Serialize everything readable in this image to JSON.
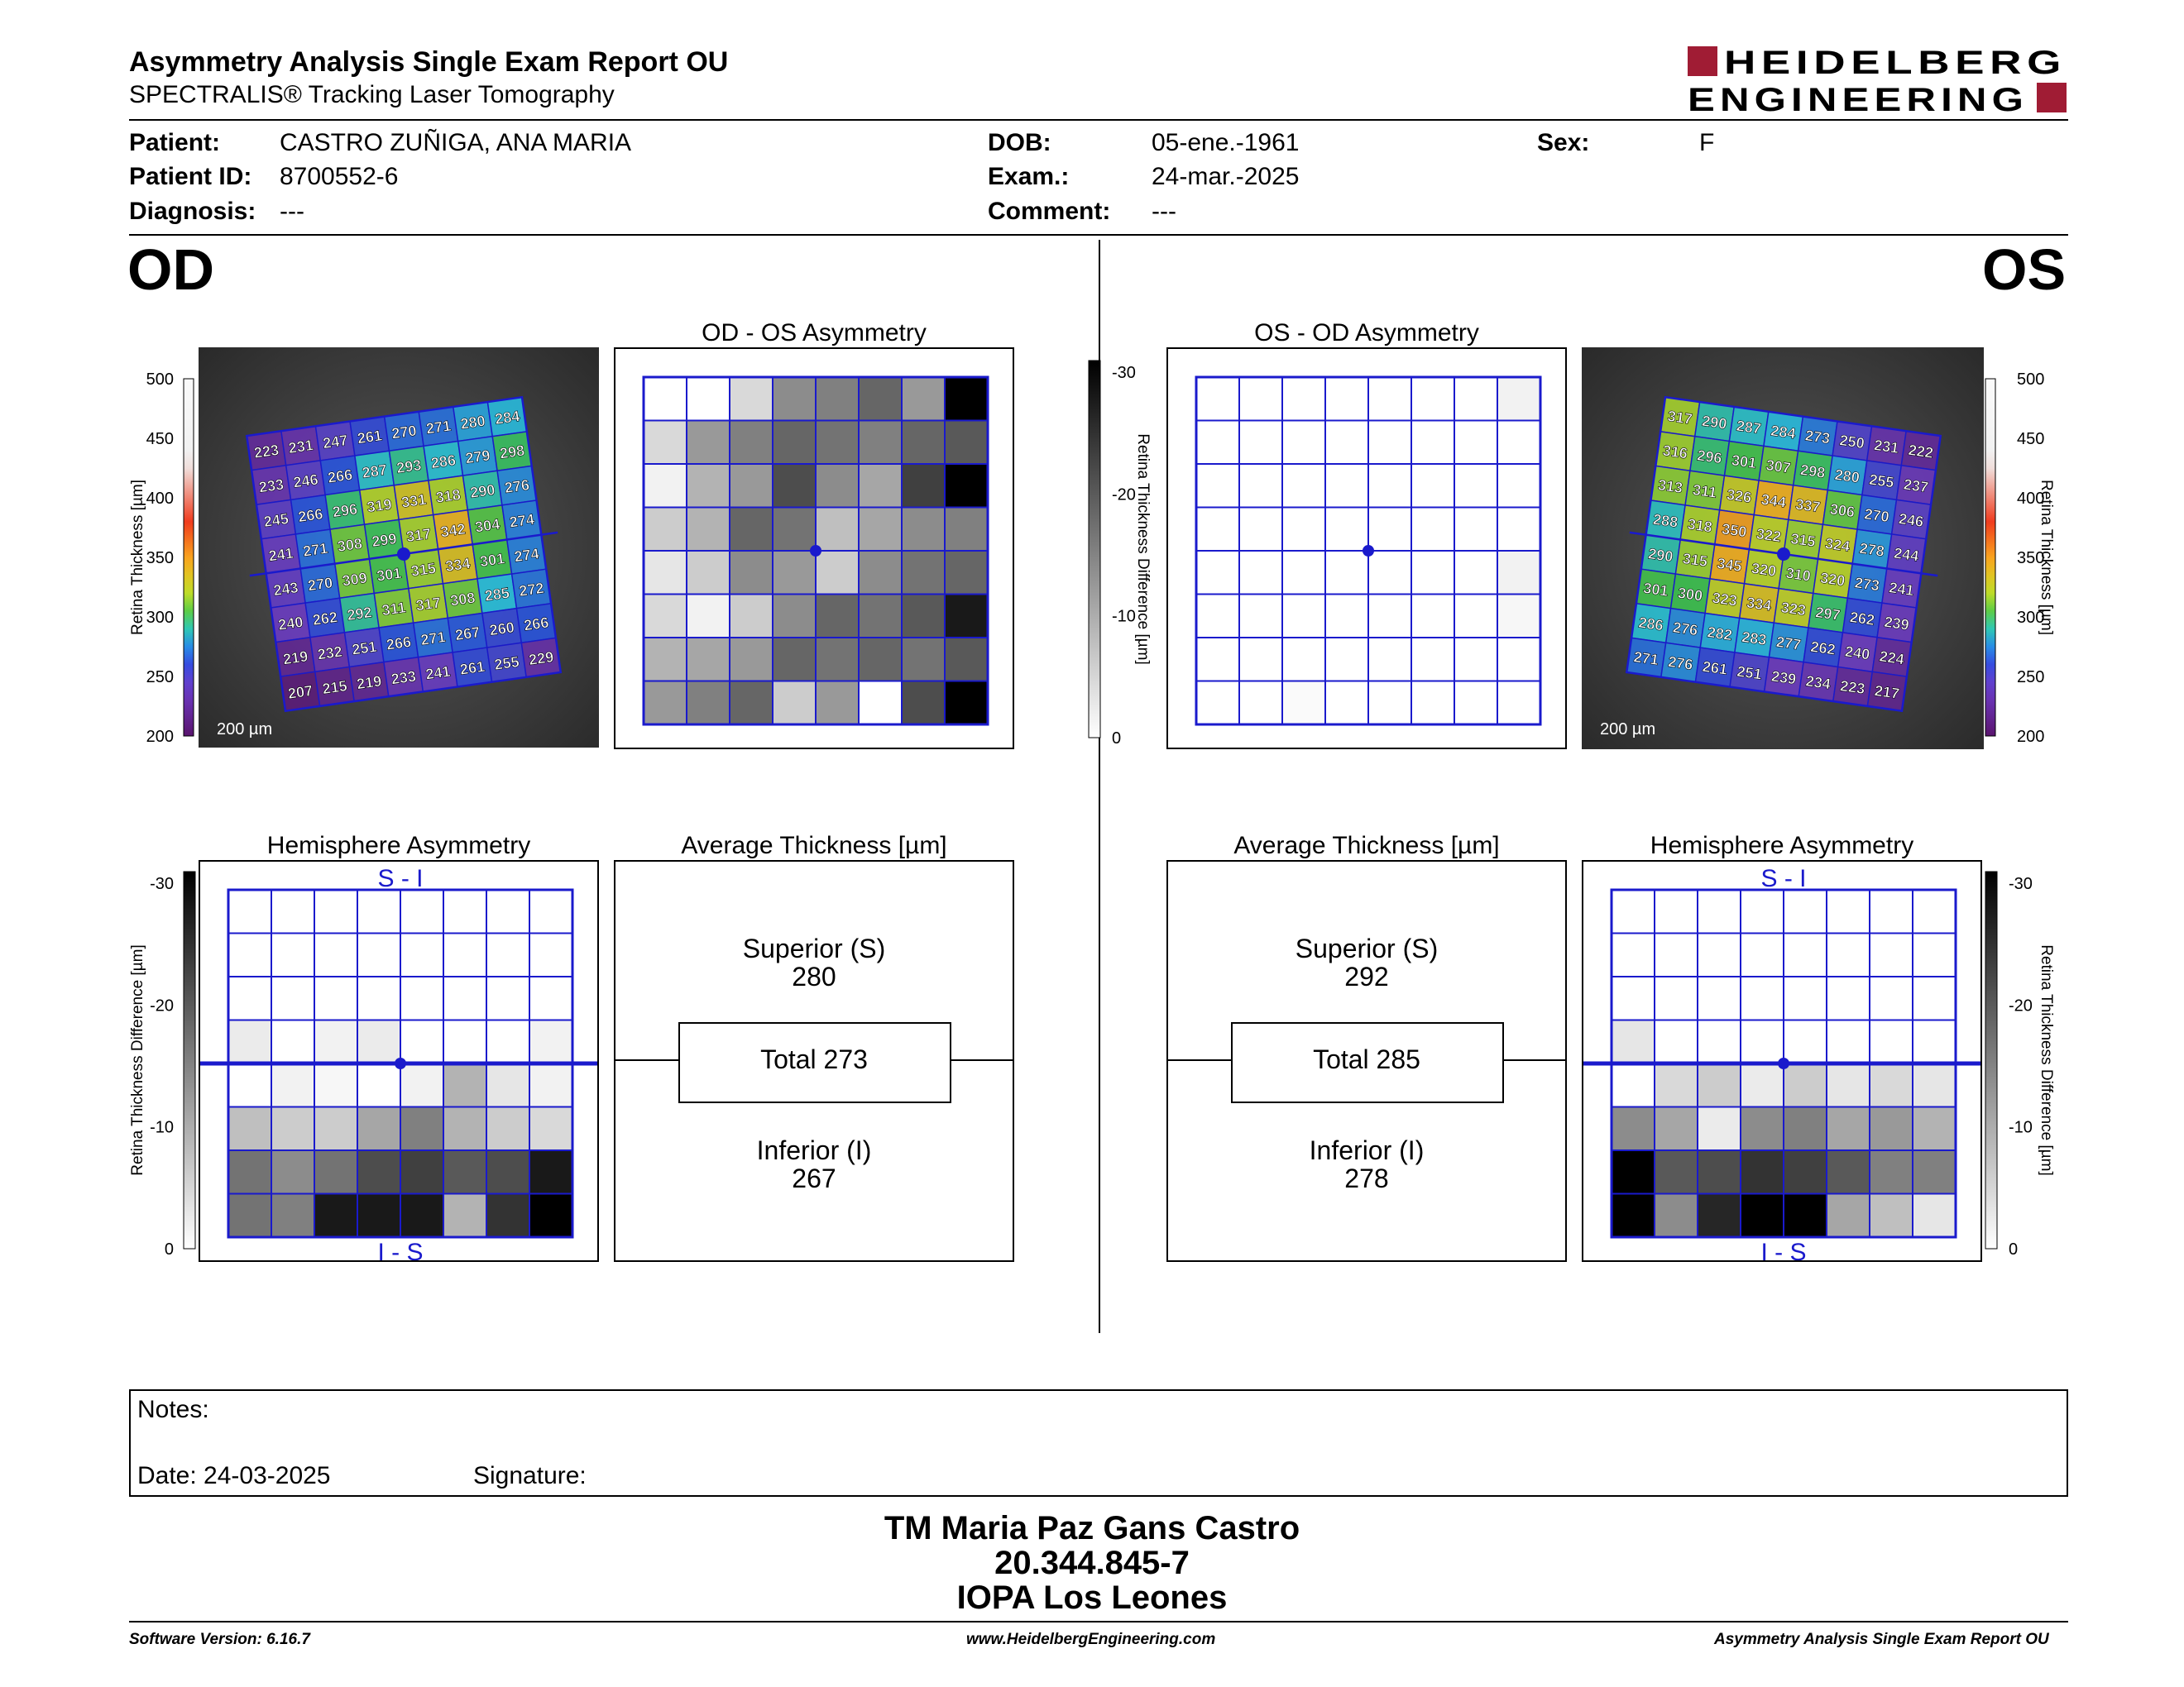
{
  "header": {
    "title": "Asymmetry Analysis Single Exam Report OU",
    "subtitle": "SPECTRALIS® Tracking Laser Tomography",
    "logo_line1": "HEIDELBERG",
    "logo_line2": "ENGINEERING",
    "brand_color": "#a01c34"
  },
  "patient": {
    "patient_label": "Patient:",
    "patient_value": "CASTRO ZUÑIGA, ANA MARIA",
    "id_label": "Patient ID:",
    "id_value": "8700552-6",
    "diagnosis_label": "Diagnosis:",
    "diagnosis_value": "---",
    "dob_label": "DOB:",
    "dob_value": "05-ene.-1961",
    "exam_label": "Exam.:",
    "exam_value": "24-mar.-2025",
    "comment_label": "Comment:",
    "comment_value": "---",
    "sex_label": "Sex:",
    "sex_value": "F"
  },
  "od": {
    "eye_label": "OD",
    "asym_title": "OD - OS Asymmetry",
    "hemi_title": "Hemisphere Asymmetry",
    "hemi_top": "S - I",
    "hemi_bottom": "I - S",
    "avg_title": "Average Thickness [µm]",
    "superior_label": "Superior (S)",
    "superior_value": "280",
    "total_text": "Total 273",
    "inferior_label": "Inferior (I)",
    "inferior_value": "267",
    "scale_bar": "200 µm",
    "thickness_grid": [
      [
        223,
        231,
        247,
        261,
        270,
        271,
        280,
        284
      ],
      [
        233,
        246,
        266,
        287,
        293,
        286,
        279,
        298
      ],
      [
        245,
        266,
        296,
        319,
        331,
        318,
        290,
        276
      ],
      [
        241,
        271,
        308,
        299,
        317,
        342,
        304,
        274
      ],
      [
        243,
        270,
        309,
        301,
        315,
        334,
        301,
        274
      ],
      [
        240,
        262,
        292,
        311,
        317,
        308,
        285,
        272
      ],
      [
        219,
        232,
        251,
        266,
        271,
        267,
        260,
        266
      ],
      [
        207,
        215,
        219,
        233,
        241,
        261,
        255,
        229
      ]
    ],
    "asym_gray": [
      [
        0,
        0,
        0.15,
        0.45,
        0.5,
        0.6,
        0.4,
        1.0
      ],
      [
        0.15,
        0.4,
        0.5,
        0.6,
        0.55,
        0.5,
        0.6,
        0.65
      ],
      [
        0.05,
        0.3,
        0.4,
        0.7,
        0.45,
        0.35,
        0.75,
        1.0
      ],
      [
        0.2,
        0.3,
        0.6,
        0.55,
        0.25,
        0.35,
        0.45,
        0.5
      ],
      [
        0.1,
        0.2,
        0.45,
        0.4,
        0.2,
        0.45,
        0.55,
        0.6
      ],
      [
        0.15,
        0.05,
        0.2,
        0.45,
        0.6,
        0.55,
        0.65,
        0.9
      ],
      [
        0.3,
        0.35,
        0.4,
        0.6,
        0.55,
        0.6,
        0.55,
        0.65
      ],
      [
        0.4,
        0.5,
        0.6,
        0.2,
        0.4,
        0.0,
        0.7,
        1.0
      ]
    ],
    "hemi_gray": [
      [
        0,
        0,
        0,
        0,
        0,
        0,
        0,
        0
      ],
      [
        0,
        0,
        0,
        0,
        0,
        0,
        0,
        0
      ],
      [
        0,
        0,
        0,
        0,
        0,
        0,
        0,
        0
      ],
      [
        0.08,
        0,
        0.05,
        0.08,
        0,
        0,
        0,
        0.05
      ],
      [
        0,
        0.05,
        0.03,
        0,
        0.05,
        0.3,
        0.1,
        0.05
      ],
      [
        0.25,
        0.2,
        0.2,
        0.35,
        0.5,
        0.3,
        0.2,
        0.15
      ],
      [
        0.55,
        0.45,
        0.55,
        0.7,
        0.75,
        0.65,
        0.7,
        0.9
      ],
      [
        0.55,
        0.5,
        0.9,
        0.9,
        0.9,
        0.3,
        0.8,
        1.0
      ]
    ]
  },
  "os": {
    "eye_label": "OS",
    "asym_title": "OS - OD Asymmetry",
    "hemi_title": "Hemisphere Asymmetry",
    "hemi_top": "S - I",
    "hemi_bottom": "I - S",
    "avg_title": "Average Thickness [µm]",
    "superior_label": "Superior (S)",
    "superior_value": "292",
    "total_text": "Total 285",
    "inferior_label": "Inferior (I)",
    "inferior_value": "278",
    "scale_bar": "200 µm",
    "thickness_grid": [
      [
        317,
        290,
        287,
        284,
        273,
        250,
        231,
        222
      ],
      [
        316,
        296,
        301,
        307,
        298,
        280,
        255,
        237
      ],
      [
        313,
        311,
        326,
        344,
        337,
        306,
        270,
        246
      ],
      [
        288,
        318,
        350,
        322,
        315,
        324,
        278,
        244
      ],
      [
        290,
        315,
        345,
        320,
        310,
        320,
        273,
        241
      ],
      [
        301,
        300,
        323,
        334,
        323,
        297,
        262,
        239
      ],
      [
        286,
        276,
        282,
        283,
        277,
        262,
        240,
        224
      ],
      [
        271,
        276,
        261,
        251,
        239,
        234,
        223,
        217
      ]
    ],
    "asym_gray": [
      [
        0,
        0,
        0,
        0,
        0,
        0,
        0,
        0.05
      ],
      [
        0,
        0,
        0,
        0,
        0,
        0,
        0,
        0
      ],
      [
        0,
        0,
        0,
        0,
        0,
        0,
        0,
        0
      ],
      [
        0,
        0,
        0,
        0,
        0,
        0,
        0,
        0
      ],
      [
        0,
        0,
        0,
        0,
        0,
        0,
        0,
        0.05
      ],
      [
        0,
        0,
        0,
        0,
        0,
        0,
        0,
        0.03
      ],
      [
        0,
        0,
        0,
        0,
        0,
        0,
        0,
        0
      ],
      [
        0,
        0,
        0.02,
        0,
        0,
        0,
        0,
        0
      ]
    ],
    "hemi_gray": [
      [
        0,
        0,
        0,
        0,
        0,
        0,
        0,
        0
      ],
      [
        0,
        0,
        0,
        0,
        0,
        0,
        0,
        0
      ],
      [
        0,
        0,
        0,
        0,
        0,
        0,
        0,
        0
      ],
      [
        0.1,
        0,
        0,
        0,
        0,
        0,
        0,
        0
      ],
      [
        0,
        0.15,
        0.2,
        0.08,
        0.2,
        0.1,
        0.15,
        0.1
      ],
      [
        0.45,
        0.35,
        0.08,
        0.45,
        0.5,
        0.35,
        0.4,
        0.3
      ],
      [
        1.0,
        0.65,
        0.7,
        0.8,
        0.75,
        0.65,
        0.5,
        0.5
      ],
      [
        1.0,
        0.45,
        0.85,
        1.0,
        1.0,
        0.35,
        0.25,
        0.1
      ]
    ]
  },
  "scales": {
    "thickness_ticks": [
      "500",
      "450",
      "400",
      "350",
      "300",
      "250",
      "200"
    ],
    "thickness_label": "Retina Thickness [µm]",
    "diff_ticks": [
      "-30",
      "-20",
      "-10",
      "0"
    ],
    "diff_label": "Retina Thickness Difference [µm]"
  },
  "notes": {
    "notes_label": "Notes:",
    "date_label": "Date: 24-03-2025",
    "signature_label": "Signature:"
  },
  "signatory": {
    "name": "TM Maria Paz Gans Castro",
    "rut": "20.344.845-7",
    "institution": "IOPA Los Leones"
  },
  "footer": {
    "software": "Software Version: 6.16.7",
    "website": "www.HeidelbergEngineering.com",
    "report": "Asymmetry Analysis Single Exam Report OU"
  }
}
